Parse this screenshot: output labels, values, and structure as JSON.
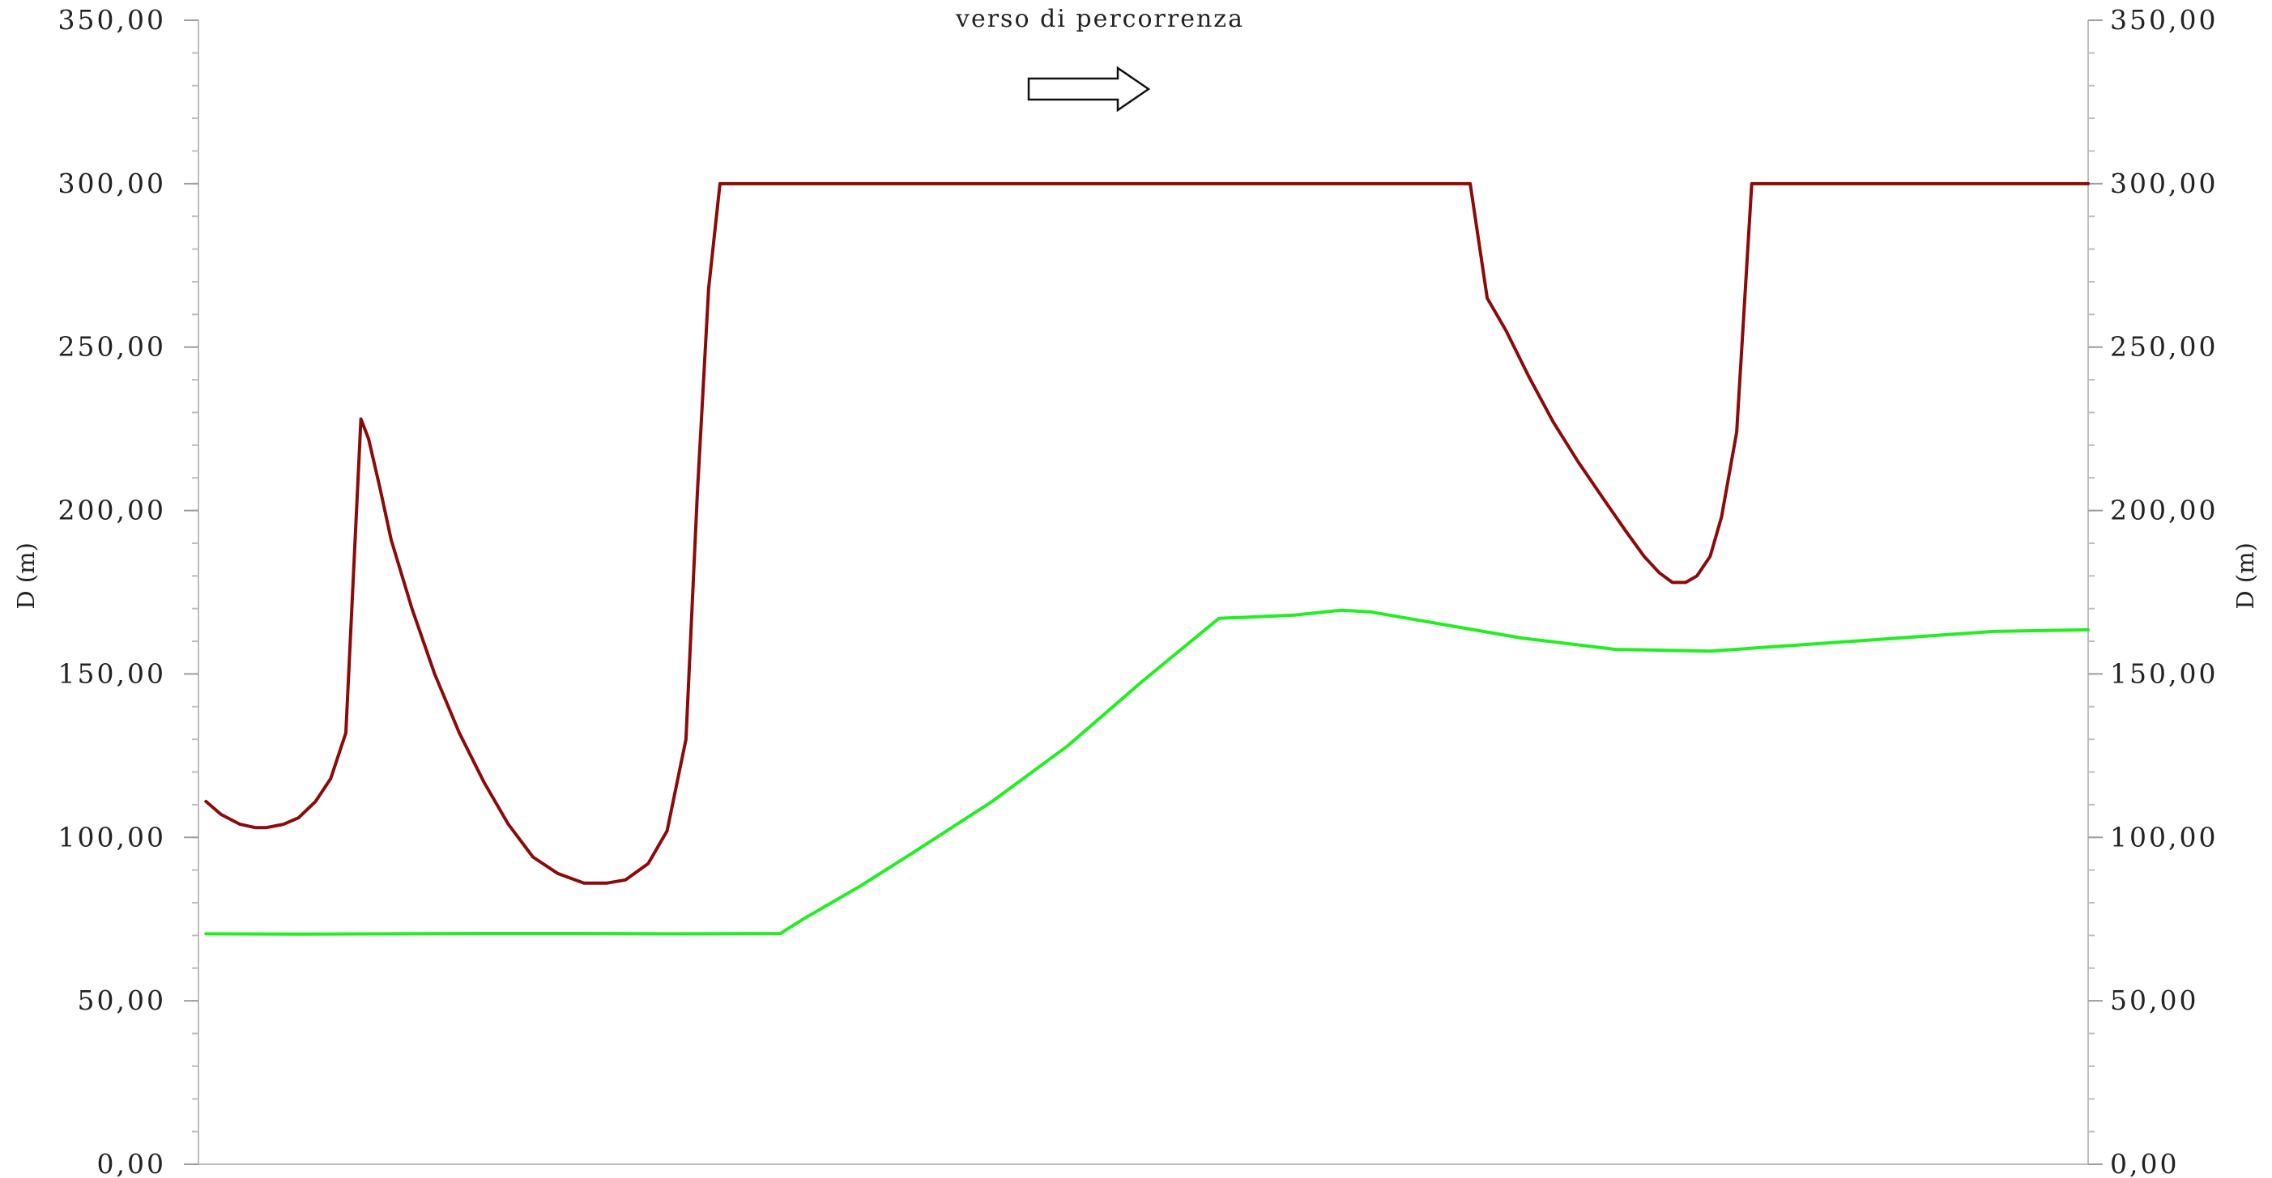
{
  "chart_data": {
    "type": "line",
    "ylabel_left": "D (m)",
    "ylabel_right": "D (m)",
    "ylim": [
      0,
      350
    ],
    "y_ticks": [
      0,
      50,
      100,
      150,
      200,
      250,
      300,
      350
    ],
    "y_tick_labels": [
      "0,00",
      "50,00",
      "100,00",
      "150,00",
      "200,00",
      "250,00",
      "300,00",
      "350,00"
    ],
    "y_minor_step": 10,
    "xlim": [
      0,
      100
    ],
    "grid": false,
    "annotation": {
      "text": "verso di percorrenza",
      "arrow": "right-arrow-icon"
    },
    "series": [
      {
        "color": "#8b0a0a",
        "x": [
          0.4,
          1.2,
          2.2,
          3.0,
          3.6,
          4.5,
          5.3,
          6.2,
          7.0,
          7.8,
          8.6,
          9.0,
          9.6,
          10.2,
          11.3,
          12.5,
          13.8,
          15.1,
          16.4,
          17.7,
          19.0,
          20.4,
          21.6,
          22.6,
          23.8,
          24.8,
          25.8,
          26.4,
          27.0,
          27.6,
          28.4,
          29.2,
          29.8,
          30.2,
          30.8,
          31.3,
          35,
          45,
          55,
          65,
          67.3,
          68.2,
          69.2,
          70.4,
          71.7,
          73.0,
          74.3,
          75.5,
          76.5,
          77.3,
          78.0,
          78.7,
          79.3,
          80.0,
          80.6,
          81.4,
          82.2,
          82.8,
          83.3,
          100
        ],
        "values": [
          111,
          107,
          104,
          103,
          103,
          104,
          106,
          111,
          118,
          132,
          228,
          222,
          207,
          191,
          170,
          150,
          132,
          117,
          104,
          94,
          89,
          86,
          86,
          87,
          92,
          102,
          130,
          205,
          268,
          300,
          300,
          300,
          300,
          300,
          300,
          300,
          300,
          300,
          300,
          300,
          300,
          265,
          255,
          241,
          227,
          215,
          204,
          194,
          186,
          181,
          178,
          178,
          180,
          186,
          198,
          224,
          300,
          300,
          300,
          300
        ]
      },
      {
        "color": "#22ee22",
        "x": [
          0.4,
          5,
          10,
          15,
          20,
          25,
          30.8,
          32,
          35,
          38,
          42,
          46,
          50,
          54,
          58,
          60.5,
          62,
          65,
          70,
          75,
          80,
          85,
          90,
          95,
          100
        ],
        "values": [
          70.5,
          70.4,
          70.5,
          70.6,
          70.6,
          70.5,
          70.6,
          75,
          85,
          96,
          111,
          128,
          148,
          167,
          168,
          169.5,
          169,
          166,
          161,
          157.5,
          157,
          159,
          161,
          163,
          163.5
        ]
      }
    ]
  }
}
